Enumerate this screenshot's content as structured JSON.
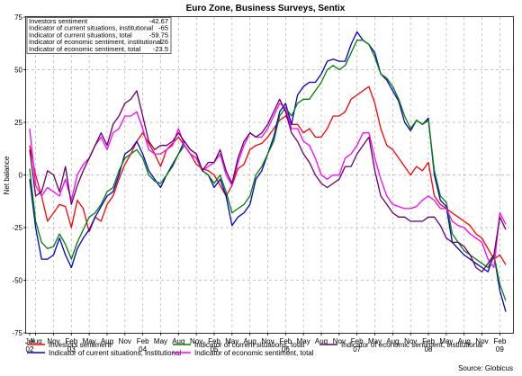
{
  "chart_data": {
    "type": "line",
    "title": "Euro Zone, Business Surveys, Sentix",
    "ylabel": "Net balance",
    "ylim": [
      -75,
      75
    ],
    "yticks": [
      -75,
      -50,
      -25,
      0,
      25,
      50,
      75
    ],
    "grid": true,
    "source": "Source: Globicus",
    "x_tick_labels": [
      "Jul",
      "Aug",
      "Nov",
      "Feb",
      "May",
      "Aug",
      "Nov",
      "Feb",
      "May",
      "Aug",
      "Nov",
      "Feb",
      "May",
      "Aug",
      "Nov",
      "Feb",
      "May",
      "Aug",
      "Nov",
      "Feb",
      "May",
      "Aug",
      "Nov",
      "Feb",
      "May",
      "Aug",
      "Nov",
      "Feb"
    ],
    "x_tick_month_index": [
      0,
      1,
      4,
      7,
      10,
      13,
      16,
      19,
      22,
      25,
      28,
      31,
      34,
      37,
      40,
      43,
      46,
      49,
      52,
      55,
      58,
      61,
      64,
      67,
      70,
      73,
      76,
      79
    ],
    "year_labels": [
      {
        "label": "02",
        "month_index": 0
      },
      {
        "label": "03",
        "month_index": 7
      },
      {
        "label": "04",
        "month_index": 19
      },
      {
        "label": "05",
        "month_index": 31
      },
      {
        "label": "06",
        "month_index": 43
      },
      {
        "label": "07",
        "month_index": 55
      },
      {
        "label": "08",
        "month_index": 67
      },
      {
        "label": "09",
        "month_index": 79
      }
    ],
    "x_start": "2002-06",
    "x_end": "2009-02",
    "value_table": [
      {
        "label": "Investors sentiment",
        "value": "-42.67"
      },
      {
        "label": "Indicator of current situations, institutional",
        "value": "-65"
      },
      {
        "label": "Indicator of current situations, total",
        "value": "-59.75"
      },
      {
        "label": "Indicator of economic sentiment, institutional",
        "value": "-26"
      },
      {
        "label": "Indicator of economic sentiment, total",
        "value": "-23.5"
      }
    ],
    "legend_position": "bottom",
    "series": [
      {
        "name": "Investors sentiment",
        "color": "#ff0000",
        "values": [
          14,
          0,
          -10,
          -22,
          -18,
          -14,
          -15,
          -25,
          -12,
          -16,
          -27,
          -20,
          -22,
          -14,
          -10,
          -2,
          5,
          10,
          16,
          20,
          15,
          10,
          4,
          12,
          15,
          18,
          14,
          10,
          5,
          3,
          2,
          0,
          -5,
          -10,
          -5,
          3,
          5,
          12,
          14,
          15,
          18,
          22,
          26,
          28,
          24,
          24,
          20,
          22,
          18,
          18,
          22,
          28,
          28,
          30,
          36,
          38,
          40,
          42,
          34,
          22,
          14,
          12,
          8,
          4,
          0,
          4,
          2,
          6,
          -10,
          -14,
          -16,
          -18,
          -20,
          -22,
          -24,
          -28,
          -30,
          -35,
          -40,
          -38,
          -42.67
        ]
      },
      {
        "name": "Indicator of current situations, institutional",
        "color": "#0000cc",
        "values": [
          -2,
          -25,
          -40,
          -40,
          -38,
          -30,
          -38,
          -44,
          -35,
          -30,
          -26,
          -20,
          -15,
          -10,
          -8,
          0,
          10,
          12,
          16,
          10,
          2,
          -2,
          -6,
          0,
          5,
          10,
          16,
          12,
          10,
          2,
          0,
          -6,
          -2,
          -10,
          -24,
          -20,
          -18,
          -14,
          -2,
          2,
          10,
          18,
          30,
          34,
          24,
          38,
          42,
          44,
          44,
          48,
          54,
          55,
          54,
          54,
          62,
          68,
          64,
          62,
          58,
          48,
          45,
          40,
          35,
          25,
          21,
          26,
          24,
          27,
          0,
          -12,
          -15,
          -32,
          -35,
          -38,
          -40,
          -42,
          -44,
          -46,
          -38,
          -55,
          -65
        ]
      },
      {
        "name": "Indicator of current situations, total",
        "color": "#008000",
        "values": [
          3,
          -22,
          -32,
          -35,
          -34,
          -28,
          -33,
          -40,
          -32,
          -26,
          -20,
          -18,
          -14,
          -8,
          -6,
          2,
          8,
          10,
          12,
          8,
          0,
          -3,
          -4,
          0,
          4,
          10,
          14,
          10,
          8,
          2,
          0,
          -4,
          0,
          -8,
          -18,
          -16,
          -14,
          -10,
          0,
          4,
          10,
          16,
          28,
          32,
          28,
          34,
          36,
          36,
          40,
          44,
          50,
          52,
          50,
          52,
          58,
          64,
          64,
          62,
          56,
          48,
          46,
          42,
          36,
          28,
          22,
          26,
          24,
          26,
          2,
          -10,
          -13,
          -28,
          -32,
          -36,
          -38,
          -40,
          -42,
          -44,
          -38,
          -52,
          -59.75
        ]
      },
      {
        "name": "Indicator of economic sentiment, total",
        "color": "#ff00ff",
        "values": [
          22,
          -5,
          -10,
          -6,
          -8,
          -10,
          -2,
          -12,
          0,
          5,
          8,
          14,
          18,
          12,
          20,
          22,
          28,
          28,
          30,
          22,
          12,
          10,
          10,
          12,
          14,
          22,
          14,
          10,
          8,
          2,
          4,
          6,
          10,
          0,
          -5,
          6,
          14,
          20,
          18,
          18,
          22,
          28,
          34,
          32,
          22,
          22,
          16,
          14,
          8,
          0,
          -2,
          0,
          0,
          8,
          10,
          14,
          20,
          20,
          8,
          -2,
          -10,
          -14,
          -15,
          -16,
          -16,
          -15,
          -12,
          -10,
          -12,
          -16,
          -16,
          -22,
          -24,
          -25,
          -28,
          -30,
          -32,
          -40,
          -44,
          -18,
          -23.5
        ]
      },
      {
        "name": "Indicator of economic sentiment, institutional",
        "color": "#660066",
        "values": [
          12,
          -10,
          -8,
          2,
          0,
          -8,
          4,
          -14,
          -5,
          2,
          8,
          14,
          20,
          14,
          24,
          28,
          34,
          36,
          40,
          28,
          16,
          12,
          14,
          14,
          16,
          20,
          16,
          12,
          10,
          2,
          6,
          6,
          12,
          2,
          -4,
          8,
          16,
          20,
          18,
          20,
          24,
          30,
          36,
          30,
          20,
          16,
          10,
          6,
          0,
          -4,
          -6,
          -4,
          -2,
          4,
          4,
          10,
          14,
          18,
          2,
          -10,
          -14,
          -18,
          -20,
          -20,
          -22,
          -22,
          -22,
          -20,
          -20,
          -24,
          -30,
          -32,
          -32,
          -34,
          -38,
          -44,
          -46,
          -42,
          -38,
          -20,
          -26
        ]
      }
    ]
  }
}
